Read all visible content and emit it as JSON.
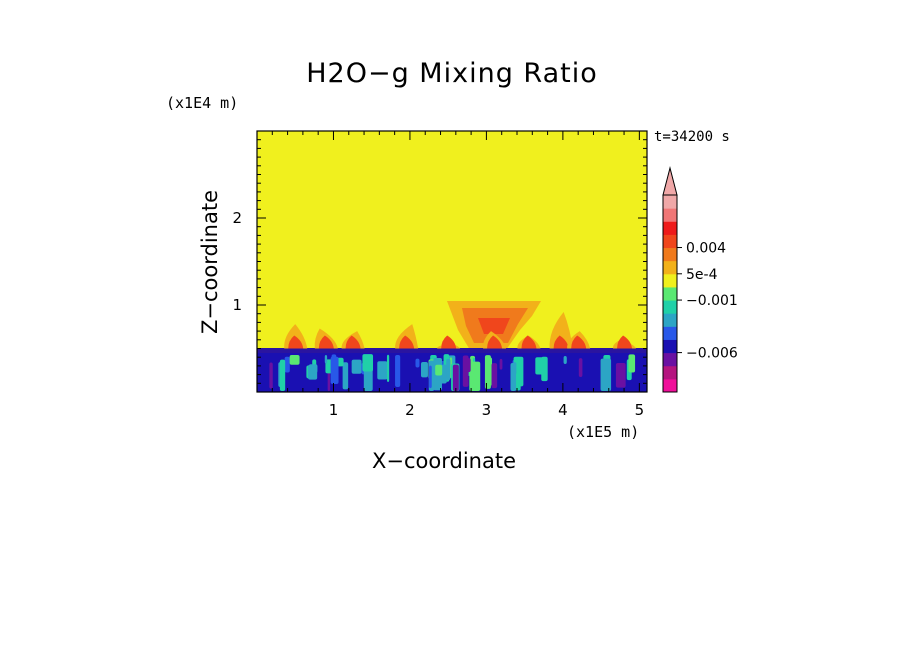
{
  "chart_data": {
    "type": "heatmap",
    "title": "H2O−g Mixing Ratio",
    "xlabel": "X−coordinate",
    "ylabel": "Z−coordinate",
    "x_multiplier": "(x1E5 m)",
    "z_multiplier": "(x1E4 m)",
    "time_label": "t=34200 s",
    "xlim": [
      0,
      5.1
    ],
    "zlim": [
      0,
      3.0
    ],
    "x_ticks": [
      "1",
      "2",
      "3",
      "4",
      "5"
    ],
    "x_tick_values": [
      1,
      2,
      3,
      4,
      5
    ],
    "z_ticks": [
      "1",
      "2"
    ],
    "z_tick_values": [
      1,
      2
    ],
    "background_level_color": "#f0f01e",
    "colorbar": {
      "extend": "max",
      "colors": [
        "#f0109a",
        "#b4147f",
        "#6a10a2",
        "#1a10b2",
        "#2858e8",
        "#2ca5c5",
        "#20d0a8",
        "#5ae872",
        "#f0f01e",
        "#f2b11a",
        "#f07a1c",
        "#f0461c",
        "#ee1a1a",
        "#f07676",
        "#f0a8a8"
      ],
      "tick_labels": [
        "0.004",
        "5e-4",
        "−0.001",
        "−0.006"
      ],
      "tick_values": [
        0.004,
        0.0005,
        -0.001,
        -0.006
      ]
    }
  }
}
